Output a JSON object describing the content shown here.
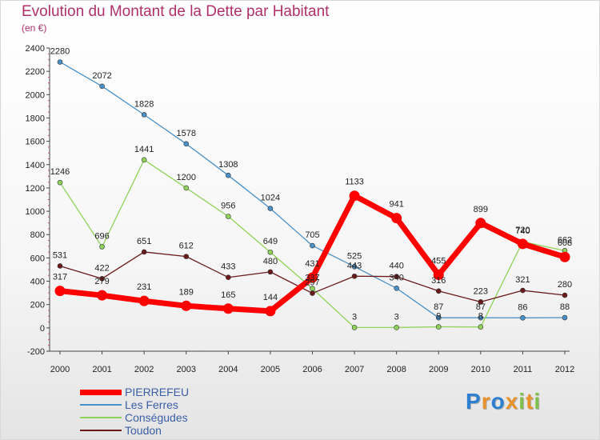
{
  "page": {
    "title": "Evolution du Montant de la Dette par Habitant",
    "subtitle": "(en €)"
  },
  "chart_data": {
    "type": "line",
    "x": [
      "2000",
      "2001",
      "2002",
      "2003",
      "2004",
      "2005",
      "2006",
      "2007",
      "2008",
      "2009",
      "2010",
      "2011",
      "2012"
    ],
    "ylim": [
      -200,
      2400
    ],
    "yticks": [
      -200,
      0,
      200,
      400,
      600,
      800,
      1000,
      1200,
      1400,
      1600,
      1800,
      2000,
      2200,
      2400
    ],
    "grid": false,
    "legend_position": "bottom-left",
    "series": [
      {
        "name": "PIERREFEU",
        "color": "#ff0000",
        "values": [
          317,
          279,
          231,
          189,
          165,
          144,
          431,
          1133,
          941,
          455,
          899,
          720,
          608
        ]
      },
      {
        "name": "Les Ferres",
        "color": "#4a90c8",
        "values": [
          2280,
          2072,
          1828,
          1578,
          1308,
          1024,
          705,
          525,
          340,
          87,
          87,
          86,
          88
        ]
      },
      {
        "name": "Conségudes",
        "color": "#8fd35a",
        "values": [
          1246,
          696,
          1441,
          1200,
          956,
          649,
          337,
          3,
          3,
          9,
          8,
          740,
          662
        ]
      },
      {
        "name": "Toudon",
        "color": "#6b1a1a",
        "values": [
          531,
          422,
          651,
          612,
          433,
          480,
          297,
          443,
          440,
          316,
          223,
          321,
          280
        ]
      }
    ]
  },
  "logo": {
    "letters": [
      "P",
      "r",
      "o",
      "x",
      "i",
      "t",
      "i"
    ],
    "colors": [
      "#2d7fd0",
      "#e8932a",
      "#2d7fd0",
      "#e8932a",
      "#7ec04a",
      "#e8932a",
      "#7ec04a"
    ]
  }
}
